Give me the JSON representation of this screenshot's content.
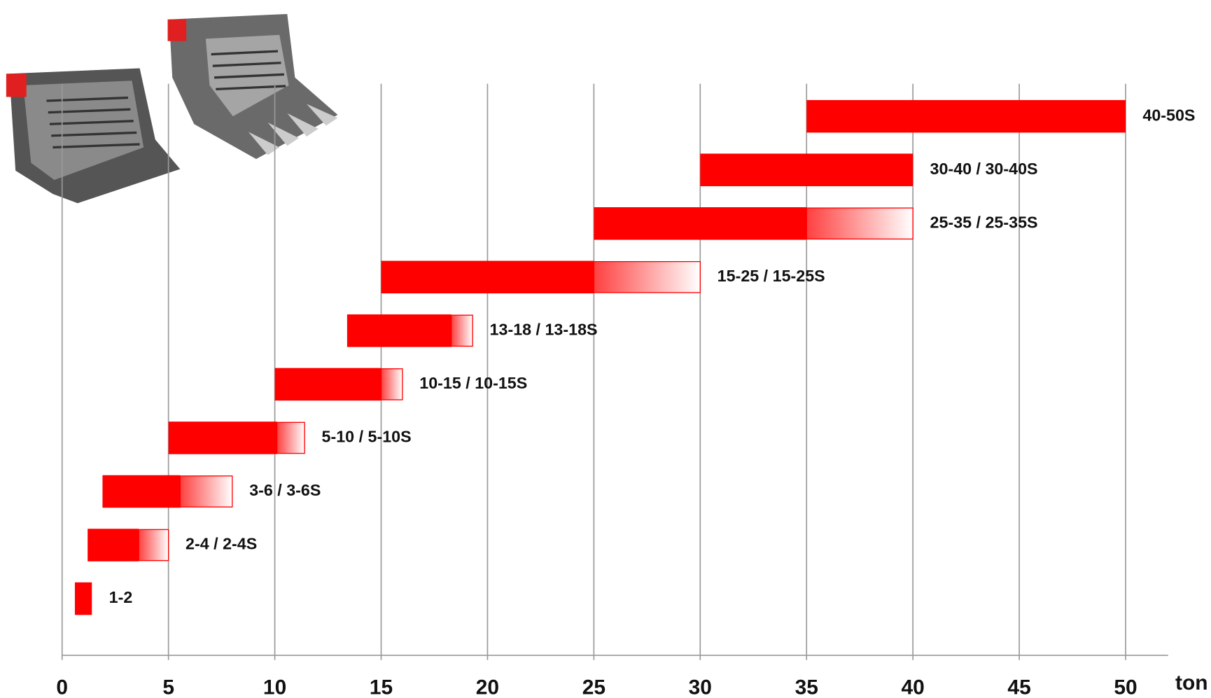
{
  "chart_data": {
    "type": "range-bar",
    "x_label": "ton",
    "categories": [
      "40-50S",
      "30-40 / 30-40S",
      "25-35 / 25-35S",
      "15-25 / 15-25S",
      "13-18 / 13-18S",
      "10-15 / 10-15S",
      "5-10 / 5-10S",
      "3-6 / 3-6S",
      "2-4 / 2-4S",
      "1-2"
    ],
    "start": [
      35,
      30,
      25,
      15,
      13.4,
      10,
      5,
      1.9,
      1.2,
      0.6
    ],
    "end": [
      50,
      40,
      35,
      25,
      18.3,
      15,
      10.1,
      5.55,
      3.6,
      1.4
    ],
    "extended_end": [
      null,
      null,
      40,
      30,
      19.3,
      16,
      11.4,
      8,
      5,
      null
    ],
    "color": "#ff0000",
    "xlim": [
      0,
      52
    ],
    "xticks": [
      0,
      5,
      10,
      15,
      20,
      25,
      30,
      35,
      40,
      45,
      50
    ],
    "grid": true
  }
}
